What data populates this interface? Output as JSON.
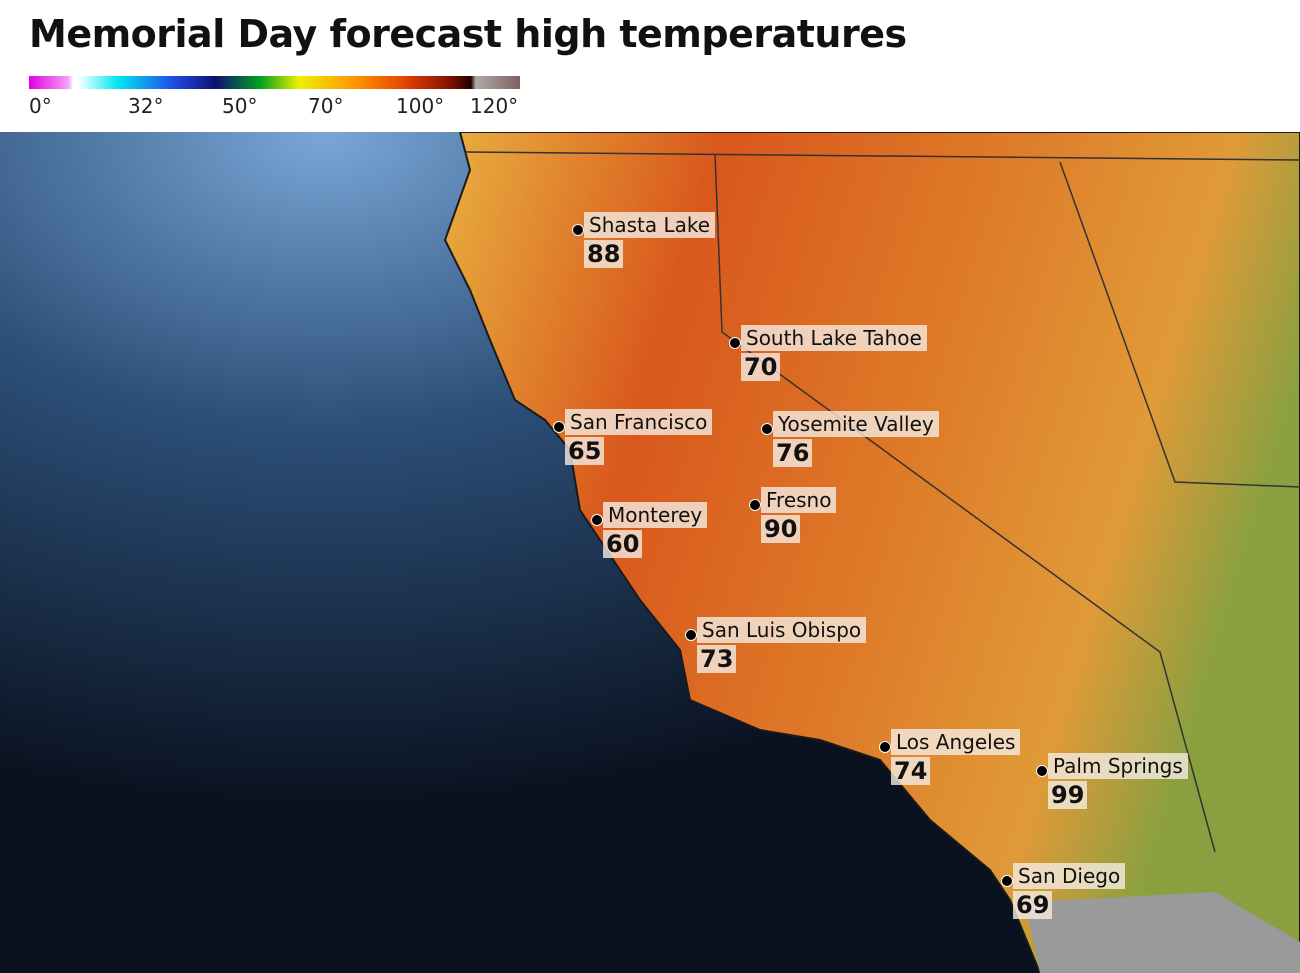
{
  "title": "Memorial Day forecast high temperatures",
  "legend": {
    "ticks": [
      "0°",
      "32°",
      "50°",
      "70°",
      "100°",
      "120°"
    ]
  },
  "cities": [
    {
      "name": "Shasta Lake",
      "temp": "88"
    },
    {
      "name": "South Lake Tahoe",
      "temp": "70"
    },
    {
      "name": "San Francisco",
      "temp": "65"
    },
    {
      "name": "Yosemite Valley",
      "temp": "76"
    },
    {
      "name": "Fresno",
      "temp": "90"
    },
    {
      "name": "Monterey",
      "temp": "60"
    },
    {
      "name": "San Luis Obispo",
      "temp": "73"
    },
    {
      "name": "Los Angeles",
      "temp": "74"
    },
    {
      "name": "Palm Springs",
      "temp": "99"
    },
    {
      "name": "San Diego",
      "temp": "69"
    }
  ],
  "colors": {
    "ocean_light": "#7aa6d6",
    "ocean_dark": "#0a1220",
    "land_hot": "#d9581c",
    "land_mild": "#e8c050"
  }
}
